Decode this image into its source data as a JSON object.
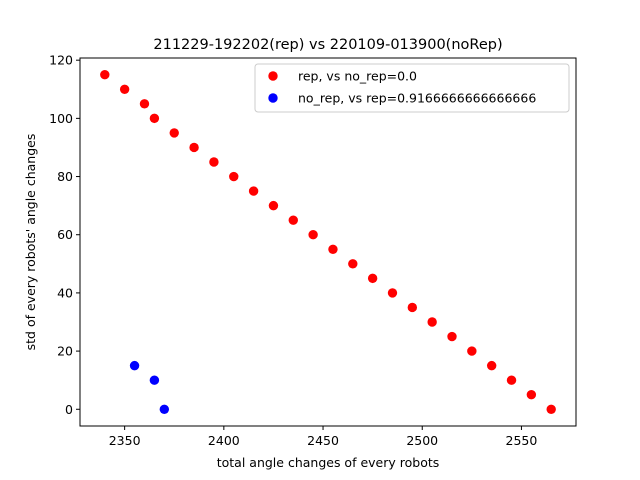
{
  "chart_data": {
    "type": "scatter",
    "title": "211229-192202(rep) vs 220109-013900(noRep)",
    "xlabel": "total angle changes of every robots",
    "ylabel": "std of every robots' angle changes",
    "xlim": [
      2327.5,
      2577.5
    ],
    "ylim": [
      -5.75,
      120.75
    ],
    "xticks": [
      2350,
      2400,
      2450,
      2500,
      2550
    ],
    "yticks": [
      0,
      20,
      40,
      60,
      80,
      100,
      120
    ],
    "grid": false,
    "legend_position": "top-right",
    "series": [
      {
        "name": "rep, vs no_rep=0.0",
        "color": "#ff0000",
        "points": [
          [
            2340,
            115
          ],
          [
            2350,
            110
          ],
          [
            2360,
            105
          ],
          [
            2365,
            100
          ],
          [
            2375,
            95
          ],
          [
            2385,
            90
          ],
          [
            2395,
            85
          ],
          [
            2405,
            80
          ],
          [
            2415,
            75
          ],
          [
            2425,
            70
          ],
          [
            2435,
            65
          ],
          [
            2445,
            60
          ],
          [
            2455,
            55
          ],
          [
            2465,
            50
          ],
          [
            2475,
            45
          ],
          [
            2485,
            40
          ],
          [
            2495,
            35
          ],
          [
            2505,
            30
          ],
          [
            2515,
            25
          ],
          [
            2525,
            20
          ],
          [
            2535,
            15
          ],
          [
            2545,
            10
          ],
          [
            2555,
            5
          ],
          [
            2565,
            0
          ]
        ]
      },
      {
        "name": "no_rep, vs rep=0.9166666666666666",
        "color": "#0000ff",
        "points": [
          [
            2355,
            15
          ],
          [
            2365,
            10
          ],
          [
            2370,
            0
          ]
        ]
      }
    ]
  }
}
